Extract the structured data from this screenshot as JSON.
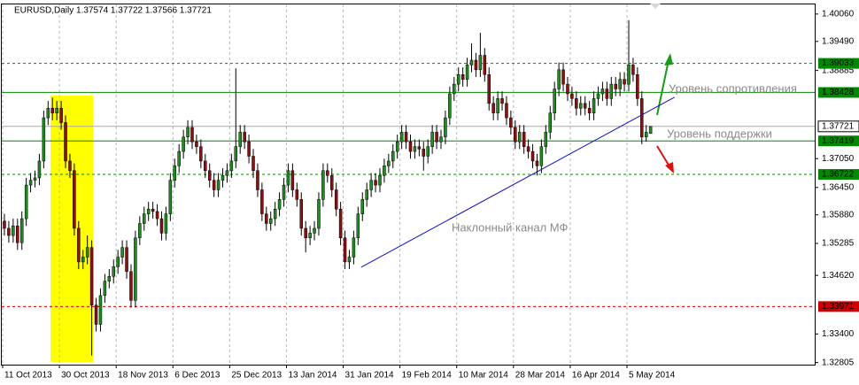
{
  "chart_data": {
    "type": "candlestick",
    "title": "EURUSD,Daily  1.37574 1.37722 1.37566 1.37721",
    "categories": [
      "11 Oct 2013",
      null,
      null,
      null,
      null,
      null,
      null,
      null,
      null,
      null,
      null,
      null,
      null,
      "30 Oct 2013",
      null,
      null,
      null,
      null,
      null,
      null,
      null,
      null,
      null,
      null,
      null,
      null,
      "18 Nov 2013",
      null,
      null,
      null,
      null,
      null,
      null,
      null,
      null,
      null,
      null,
      null,
      null,
      "6 Dec 2013",
      null,
      null,
      null,
      null,
      null,
      null,
      null,
      null,
      null,
      null,
      null,
      null,
      "25 Dec 2013",
      null,
      null,
      null,
      null,
      null,
      null,
      null,
      null,
      null,
      null,
      null,
      null,
      "13 Jan 2014",
      null,
      null,
      null,
      null,
      null,
      null,
      null,
      null,
      null,
      null,
      null,
      null,
      "31 Jan 2014",
      null,
      null,
      null,
      null,
      null,
      null,
      null,
      null,
      null,
      null,
      null,
      null,
      "19 Feb 2014",
      null,
      null,
      null,
      null,
      null,
      null,
      null,
      null,
      null,
      null,
      null,
      null,
      "10 Mar 2014",
      null,
      null,
      null,
      null,
      null,
      null,
      null,
      null,
      null,
      null,
      null,
      null,
      "28 Mar 2014",
      null,
      null,
      null,
      null,
      null,
      null,
      null,
      null,
      null,
      null,
      null,
      null,
      "16 Apr 2014",
      null,
      null,
      null,
      null,
      null,
      null,
      null,
      null,
      null,
      null,
      null,
      null,
      "5 May 2014",
      null,
      null,
      null,
      null,
      null
    ],
    "ohlc": [
      [
        1.3575,
        1.359,
        1.3545,
        1.356
      ],
      [
        1.356,
        1.3575,
        1.353,
        1.3545
      ],
      [
        1.3545,
        1.358,
        1.353,
        1.3565
      ],
      [
        1.3565,
        1.358,
        1.3515,
        1.353
      ],
      [
        1.353,
        1.3595,
        1.3515,
        1.358
      ],
      [
        1.358,
        1.3665,
        1.3565,
        1.365
      ],
      [
        1.365,
        1.3675,
        1.3635,
        1.366
      ],
      [
        1.366,
        1.368,
        1.3645,
        1.3665
      ],
      [
        1.3665,
        1.3715,
        1.365,
        1.37
      ],
      [
        1.37,
        1.3805,
        1.3685,
        1.379
      ],
      [
        1.379,
        1.3825,
        1.3775,
        1.381
      ],
      [
        1.381,
        1.3832,
        1.3785,
        1.38
      ],
      [
        1.38,
        1.3825,
        1.3785,
        1.381
      ],
      [
        1.381,
        1.3825,
        1.3765,
        1.378
      ],
      [
        1.378,
        1.3795,
        1.3685,
        1.37
      ],
      [
        1.37,
        1.3715,
        1.3665,
        1.368
      ],
      [
        1.368,
        1.3695,
        1.3545,
        1.356
      ],
      [
        1.356,
        1.3575,
        1.3475,
        1.349
      ],
      [
        1.349,
        1.3515,
        1.3475,
        1.35
      ],
      [
        1.35,
        1.3545,
        1.3485,
        1.352
      ],
      [
        1.352,
        1.3535,
        1.3295,
        1.34
      ],
      [
        1.34,
        1.3415,
        1.3345,
        1.336
      ],
      [
        1.336,
        1.3435,
        1.3345,
        1.342
      ],
      [
        1.342,
        1.3465,
        1.3405,
        1.345
      ],
      [
        1.345,
        1.3475,
        1.3435,
        1.346
      ],
      [
        1.346,
        1.3495,
        1.3445,
        1.348
      ],
      [
        1.348,
        1.3515,
        1.3465,
        1.35
      ],
      [
        1.35,
        1.3535,
        1.3485,
        1.352
      ],
      [
        1.352,
        1.3535,
        1.3455,
        1.347
      ],
      [
        1.347,
        1.3485,
        1.3395,
        1.341
      ],
      [
        1.341,
        1.3555,
        1.3395,
        1.354
      ],
      [
        1.354,
        1.3585,
        1.3525,
        1.357
      ],
      [
        1.357,
        1.3605,
        1.3555,
        1.359
      ],
      [
        1.359,
        1.3615,
        1.3575,
        1.36
      ],
      [
        1.36,
        1.3615,
        1.358,
        1.3595
      ],
      [
        1.3595,
        1.361,
        1.3565,
        1.358
      ],
      [
        1.358,
        1.3595,
        1.3535,
        1.355
      ],
      [
        1.355,
        1.3605,
        1.3535,
        1.359
      ],
      [
        1.359,
        1.3675,
        1.3575,
        1.366
      ],
      [
        1.366,
        1.3705,
        1.3645,
        1.369
      ],
      [
        1.369,
        1.3735,
        1.3675,
        1.372
      ],
      [
        1.372,
        1.3765,
        1.3705,
        1.375
      ],
      [
        1.375,
        1.3785,
        1.3735,
        1.377
      ],
      [
        1.377,
        1.3785,
        1.3725,
        1.374
      ],
      [
        1.374,
        1.3755,
        1.3715,
        1.373
      ],
      [
        1.373,
        1.3745,
        1.3685,
        1.37
      ],
      [
        1.37,
        1.3715,
        1.3665,
        1.368
      ],
      [
        1.368,
        1.3695,
        1.3645,
        1.366
      ],
      [
        1.366,
        1.3675,
        1.3625,
        1.364
      ],
      [
        1.364,
        1.3675,
        1.3625,
        1.366
      ],
      [
        1.366,
        1.3685,
        1.3645,
        1.367
      ],
      [
        1.367,
        1.3695,
        1.3655,
        1.368
      ],
      [
        1.368,
        1.3715,
        1.3665,
        1.37
      ],
      [
        1.37,
        1.3893,
        1.3685,
        1.373
      ],
      [
        1.373,
        1.3775,
        1.3715,
        1.376
      ],
      [
        1.376,
        1.3775,
        1.3725,
        1.374
      ],
      [
        1.374,
        1.3755,
        1.3695,
        1.371
      ],
      [
        1.371,
        1.3725,
        1.3665,
        1.368
      ],
      [
        1.368,
        1.3695,
        1.3625,
        1.364
      ],
      [
        1.364,
        1.3655,
        1.3575,
        1.359
      ],
      [
        1.359,
        1.3605,
        1.3555,
        1.357
      ],
      [
        1.357,
        1.3595,
        1.3555,
        1.358
      ],
      [
        1.358,
        1.3615,
        1.3565,
        1.36
      ],
      [
        1.36,
        1.3635,
        1.3585,
        1.362
      ],
      [
        1.362,
        1.3665,
        1.3605,
        1.365
      ],
      [
        1.365,
        1.3695,
        1.3635,
        1.368
      ],
      [
        1.368,
        1.3695,
        1.3625,
        1.364
      ],
      [
        1.364,
        1.3655,
        1.3605,
        1.362
      ],
      [
        1.362,
        1.3635,
        1.3545,
        1.356
      ],
      [
        1.356,
        1.3575,
        1.351,
        1.354
      ],
      [
        1.354,
        1.3565,
        1.3525,
        1.355
      ],
      [
        1.355,
        1.3575,
        1.3535,
        1.356
      ],
      [
        1.356,
        1.3635,
        1.3545,
        1.362
      ],
      [
        1.362,
        1.3695,
        1.3605,
        1.368
      ],
      [
        1.368,
        1.3695,
        1.3655,
        1.367
      ],
      [
        1.367,
        1.3685,
        1.3625,
        1.364
      ],
      [
        1.364,
        1.3655,
        1.3585,
        1.36
      ],
      [
        1.36,
        1.3615,
        1.3525,
        1.354
      ],
      [
        1.354,
        1.3555,
        1.3475,
        1.349
      ],
      [
        1.349,
        1.3515,
        1.3475,
        1.35
      ],
      [
        1.35,
        1.3555,
        1.3485,
        1.354
      ],
      [
        1.354,
        1.3605,
        1.3525,
        1.359
      ],
      [
        1.359,
        1.3635,
        1.3575,
        1.362
      ],
      [
        1.362,
        1.3655,
        1.3605,
        1.364
      ],
      [
        1.364,
        1.3675,
        1.3625,
        1.366
      ],
      [
        1.366,
        1.3675,
        1.3635,
        1.365
      ],
      [
        1.365,
        1.3685,
        1.3635,
        1.367
      ],
      [
        1.367,
        1.3705,
        1.3655,
        1.369
      ],
      [
        1.369,
        1.3715,
        1.3675,
        1.37
      ],
      [
        1.37,
        1.3735,
        1.3685,
        1.372
      ],
      [
        1.372,
        1.3755,
        1.3705,
        1.374
      ],
      [
        1.374,
        1.3775,
        1.3725,
        1.376
      ],
      [
        1.376,
        1.3775,
        1.3725,
        1.374
      ],
      [
        1.374,
        1.3755,
        1.3705,
        1.372
      ],
      [
        1.372,
        1.3745,
        1.3705,
        1.373
      ],
      [
        1.373,
        1.3745,
        1.371,
        1.3725
      ],
      [
        1.3725,
        1.374,
        1.368,
        1.371
      ],
      [
        1.371,
        1.3745,
        1.3695,
        1.373
      ],
      [
        1.373,
        1.3775,
        1.3715,
        1.376
      ],
      [
        1.376,
        1.3775,
        1.3725,
        1.374
      ],
      [
        1.374,
        1.3765,
        1.3725,
        1.375
      ],
      [
        1.375,
        1.3805,
        1.3735,
        1.379
      ],
      [
        1.379,
        1.3855,
        1.3775,
        1.384
      ],
      [
        1.384,
        1.3875,
        1.3825,
        1.386
      ],
      [
        1.386,
        1.3895,
        1.3845,
        1.388
      ],
      [
        1.388,
        1.3895,
        1.3855,
        1.387
      ],
      [
        1.387,
        1.3915,
        1.3855,
        1.39
      ],
      [
        1.39,
        1.3945,
        1.3885,
        1.391
      ],
      [
        1.391,
        1.3925,
        1.3875,
        1.389
      ],
      [
        1.389,
        1.3967,
        1.3875,
        1.392
      ],
      [
        1.392,
        1.3935,
        1.3865,
        1.388
      ],
      [
        1.388,
        1.3895,
        1.3805,
        1.382
      ],
      [
        1.382,
        1.3835,
        1.3785,
        1.38
      ],
      [
        1.38,
        1.3845,
        1.3785,
        1.383
      ],
      [
        1.383,
        1.3845,
        1.3805,
        1.382
      ],
      [
        1.382,
        1.3835,
        1.3775,
        1.379
      ],
      [
        1.379,
        1.3805,
        1.3755,
        1.377
      ],
      [
        1.377,
        1.3785,
        1.3725,
        1.374
      ],
      [
        1.374,
        1.3775,
        1.3725,
        1.376
      ],
      [
        1.376,
        1.3775,
        1.3715,
        1.373
      ],
      [
        1.373,
        1.3745,
        1.3705,
        1.372
      ],
      [
        1.372,
        1.3735,
        1.3685,
        1.37
      ],
      [
        1.37,
        1.3715,
        1.367,
        1.369
      ],
      [
        1.369,
        1.3745,
        1.3675,
        1.373
      ],
      [
        1.373,
        1.3775,
        1.3715,
        1.376
      ],
      [
        1.376,
        1.3815,
        1.3745,
        1.38
      ],
      [
        1.38,
        1.3865,
        1.3785,
        1.385
      ],
      [
        1.385,
        1.3905,
        1.3835,
        1.389
      ],
      [
        1.389,
        1.3905,
        1.3845,
        1.386
      ],
      [
        1.386,
        1.3875,
        1.3825,
        1.384
      ],
      [
        1.384,
        1.3855,
        1.3815,
        1.383
      ],
      [
        1.383,
        1.3845,
        1.3795,
        1.381
      ],
      [
        1.381,
        1.3835,
        1.3795,
        1.382
      ],
      [
        1.382,
        1.3835,
        1.3795,
        1.381
      ],
      [
        1.381,
        1.3825,
        1.3785,
        1.38
      ],
      [
        1.38,
        1.3845,
        1.3785,
        1.383
      ],
      [
        1.383,
        1.3855,
        1.3815,
        1.384
      ],
      [
        1.384,
        1.3865,
        1.3825,
        1.385
      ],
      [
        1.385,
        1.3865,
        1.3815,
        1.383
      ],
      [
        1.383,
        1.3875,
        1.3815,
        1.386
      ],
      [
        1.386,
        1.3875,
        1.3835,
        1.385
      ],
      [
        1.385,
        1.3885,
        1.3835,
        1.387
      ],
      [
        1.387,
        1.3885,
        1.3845,
        1.386
      ],
      [
        1.386,
        1.3993,
        1.3845,
        1.39
      ],
      [
        1.39,
        1.3915,
        1.3865,
        1.388
      ],
      [
        1.388,
        1.3895,
        1.3815,
        1.383
      ],
      [
        1.383,
        1.3845,
        1.3735,
        1.375
      ],
      [
        1.375,
        1.3775,
        1.374,
        1.376
      ],
      [
        1.37574,
        1.37722,
        1.37566,
        1.37721
      ]
    ],
    "up_color": "#1e8c1e",
    "down_color": "#8b1010",
    "ylim": [
      1.3278,
      1.4026
    ],
    "yticks": [
      {
        "value": 1.4006,
        "label": "1.40060"
      },
      {
        "value": 1.3949,
        "label": "1.39490"
      },
      1.38885,
      {
        "value": 1.3705,
        "label": "1.37050"
      },
      {
        "value": 1.3645,
        "label": "1.36450"
      },
      {
        "value": 1.3588,
        "label": "1.35880"
      },
      1.35285,
      {
        "value": 1.3462,
        "label": "1.34620"
      },
      {
        "value": 1.334,
        "label": "1.33400"
      },
      1.32805
    ],
    "grid": true,
    "levels": [
      {
        "value": 1.39033,
        "color": "#008800",
        "style": "dashed"
      },
      {
        "value": 1.38428,
        "color": "#008800",
        "style": "solid"
      },
      {
        "value": 1.37419,
        "color": "#008800",
        "style": "solid"
      },
      {
        "value": 1.36722,
        "color": "#008800",
        "style": "dashed"
      },
      {
        "value": 1.33971,
        "color": "#cc0000",
        "style": "dashed"
      }
    ],
    "current_price": {
      "value": 1.37721,
      "color": "#a8a8a8"
    },
    "trendline": {
      "x": [
        81.7,
        153.5
      ],
      "y": [
        1.3479,
        1.3833
      ],
      "color": "#1010c0"
    },
    "annotations": [
      "Уровень сопротивления",
      "Уровень поддержки",
      "Наклонный канал МФ"
    ]
  }
}
